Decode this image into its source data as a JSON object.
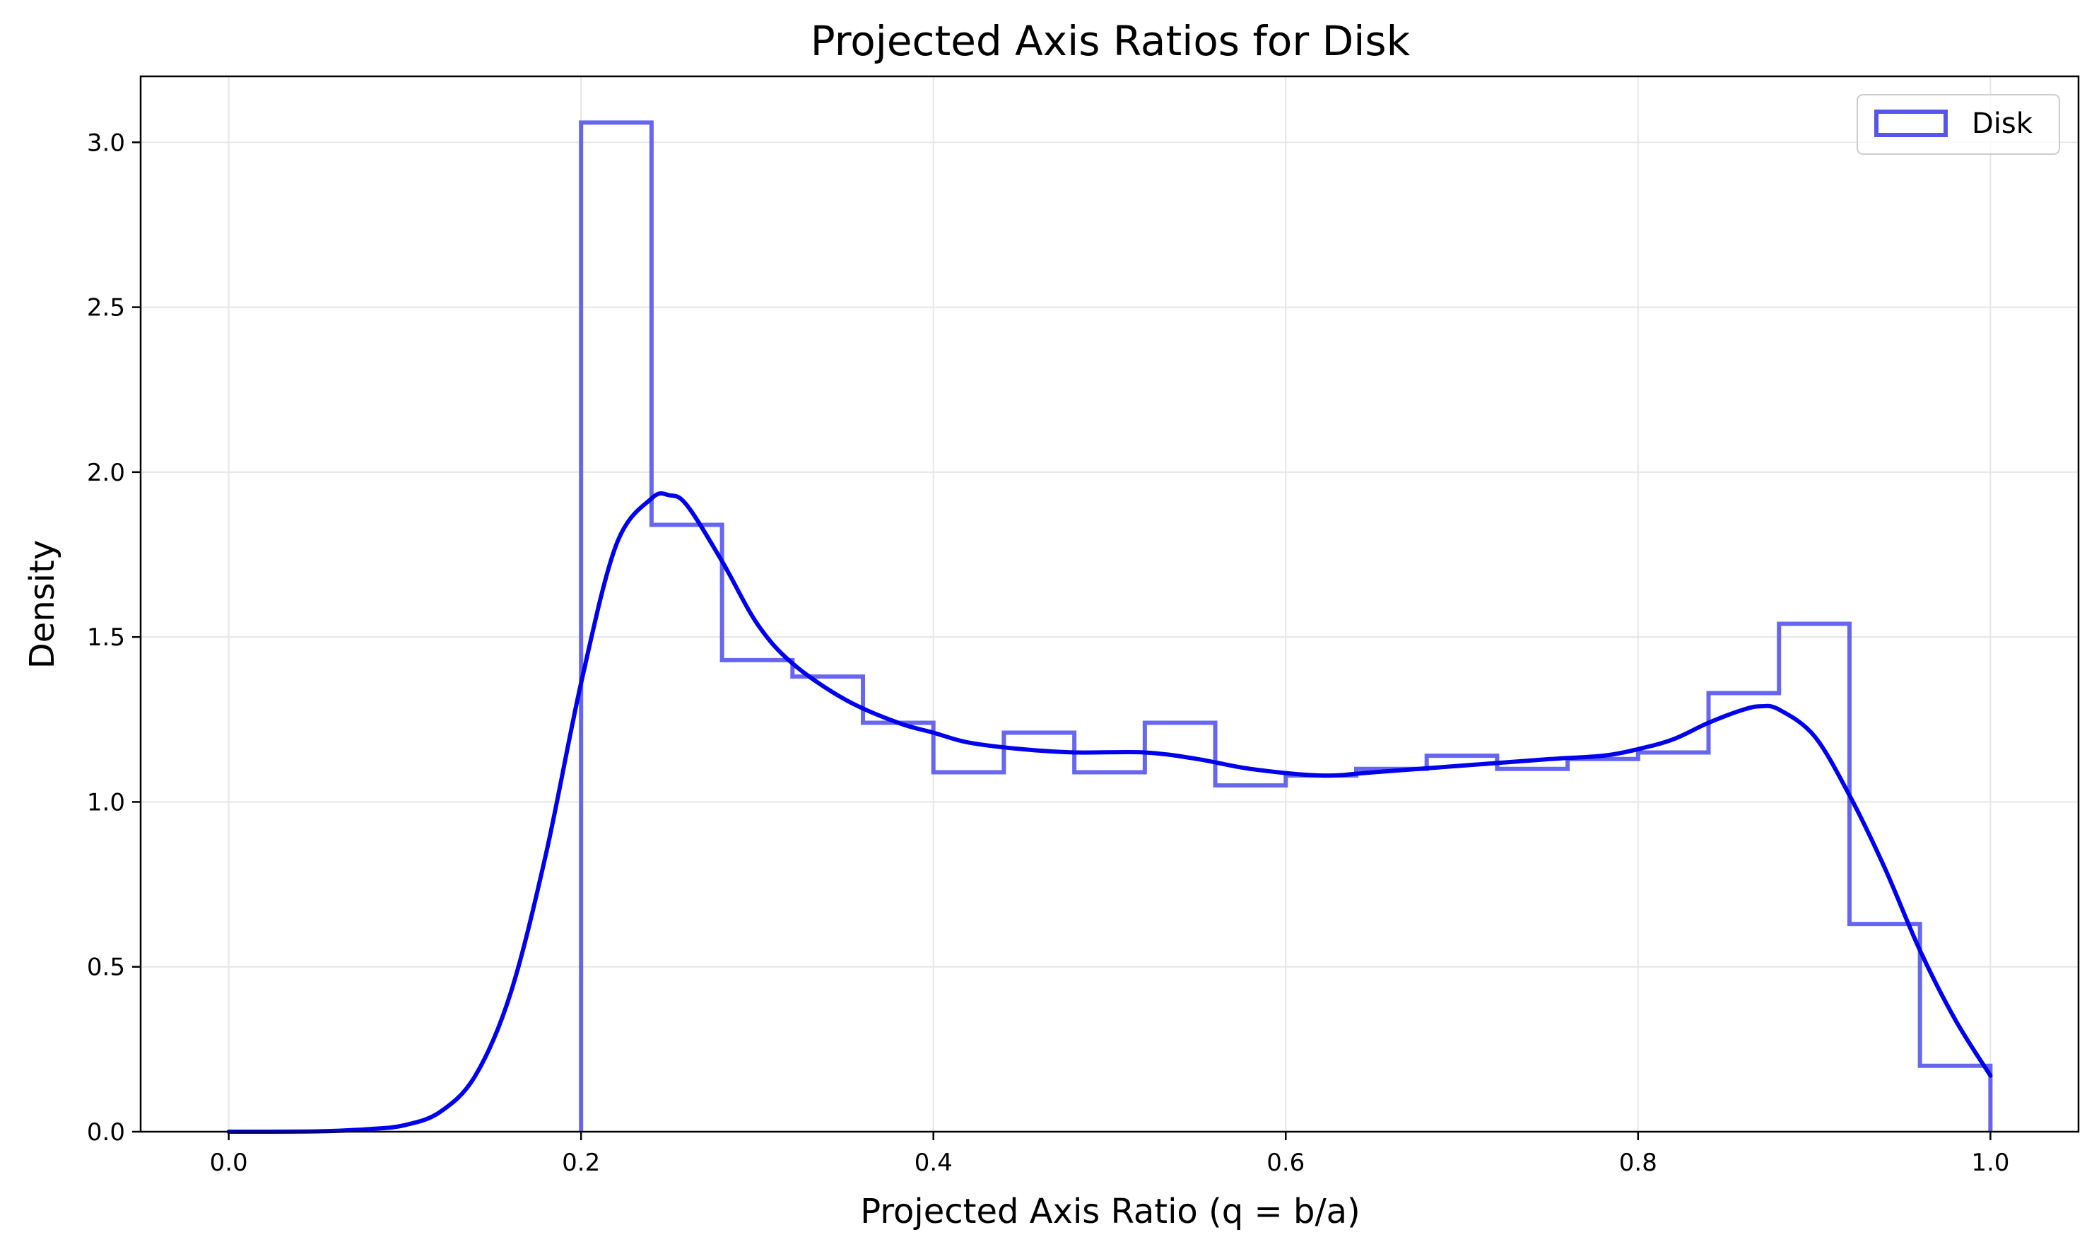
{
  "chart_data": {
    "type": "histogram",
    "title": "Projected Axis Ratios for Disk",
    "xlabel": "Projected Axis Ratio (q = b/a)",
    "ylabel": "Density",
    "xlim": [
      -0.05,
      1.05
    ],
    "ylim": [
      0,
      3.2
    ],
    "xticks": [
      0.0,
      0.2,
      0.4,
      0.6,
      0.8,
      1.0
    ],
    "xtick_labels": [
      "0.0",
      "0.2",
      "0.4",
      "0.6",
      "0.8",
      "1.0"
    ],
    "yticks": [
      0.0,
      0.5,
      1.0,
      1.5,
      2.0,
      2.5,
      3.0
    ],
    "ytick_labels": [
      "0.0",
      "0.5",
      "1.0",
      "1.5",
      "2.0",
      "2.5",
      "3.0"
    ],
    "grid": true,
    "legend": {
      "position": "top-right",
      "entries": [
        {
          "label": "Disk",
          "color": "#5555ee"
        }
      ]
    },
    "histogram": {
      "name": "Disk",
      "style": "step",
      "color": "#5555ee",
      "bin_edges": [
        0.2,
        0.24,
        0.28,
        0.32,
        0.36,
        0.4,
        0.44,
        0.48,
        0.52,
        0.56,
        0.6,
        0.64,
        0.68,
        0.72,
        0.76,
        0.8,
        0.84,
        0.88,
        0.92,
        0.96,
        1.0
      ],
      "density": [
        3.06,
        1.84,
        1.43,
        1.38,
        1.24,
        1.09,
        1.21,
        1.09,
        1.24,
        1.05,
        1.08,
        1.1,
        1.14,
        1.1,
        1.13,
        1.15,
        1.33,
        1.54,
        0.63,
        0.2
      ]
    },
    "kde": {
      "color": "#0000ee",
      "x": [
        0.0,
        0.05,
        0.08,
        0.1,
        0.12,
        0.14,
        0.16,
        0.18,
        0.2,
        0.22,
        0.24,
        0.25,
        0.26,
        0.28,
        0.3,
        0.32,
        0.35,
        0.38,
        0.4,
        0.42,
        0.45,
        0.48,
        0.52,
        0.55,
        0.58,
        0.62,
        0.65,
        0.7,
        0.75,
        0.78,
        0.8,
        0.82,
        0.84,
        0.86,
        0.87,
        0.88,
        0.9,
        0.92,
        0.94,
        0.96,
        0.98,
        1.0
      ],
      "y": [
        0.0,
        0.001,
        0.008,
        0.02,
        0.06,
        0.17,
        0.42,
        0.84,
        1.36,
        1.78,
        1.92,
        1.93,
        1.9,
        1.73,
        1.54,
        1.42,
        1.31,
        1.24,
        1.21,
        1.18,
        1.16,
        1.15,
        1.15,
        1.13,
        1.1,
        1.08,
        1.09,
        1.11,
        1.13,
        1.14,
        1.16,
        1.19,
        1.24,
        1.28,
        1.29,
        1.28,
        1.2,
        1.02,
        0.8,
        0.55,
        0.34,
        0.17
      ]
    }
  }
}
